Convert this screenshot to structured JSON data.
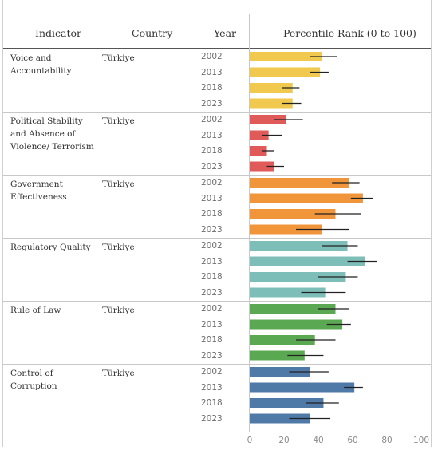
{
  "headers": {
    "indicator": "Indicator",
    "country": "Country",
    "year": "Year",
    "rank": "Percentile Rank (0 to 100)"
  },
  "axis_ticks": [
    "0",
    "20",
    "40",
    "60",
    "80",
    "100"
  ],
  "colors": {
    "Voice and Accountability": "#f0c94e",
    "Political Stability and Absence of Violence/ Terrorism": "#e05a5a",
    "Government Effectiveness": "#f0953a",
    "Regulatory Quality": "#7dbfb8",
    "Rule of Law": "#5aa851",
    "Control of Corruption": "#4f7aa8"
  },
  "chart_data": {
    "type": "bar",
    "orientation": "horizontal",
    "title": "",
    "xlabel": "Percentile Rank (0 to 100)",
    "xlim": [
      0,
      100
    ],
    "error_bars": true,
    "groups": [
      {
        "indicator": "Voice and Accountability",
        "country": "Türkiye",
        "rows": [
          {
            "year": "2002",
            "value": 42,
            "low": 35,
            "high": 51
          },
          {
            "year": "2013",
            "value": 41,
            "low": 35,
            "high": 46
          },
          {
            "year": "2018",
            "value": 25,
            "low": 19,
            "high": 29
          },
          {
            "year": "2023",
            "value": 25,
            "low": 19,
            "high": 30
          }
        ]
      },
      {
        "indicator": "Political Stability and Absence of Violence/ Terrorism",
        "country": "Türkiye",
        "rows": [
          {
            "year": "2002",
            "value": 21,
            "low": 14,
            "high": 31
          },
          {
            "year": "2013",
            "value": 11,
            "low": 7,
            "high": 19
          },
          {
            "year": "2018",
            "value": 10,
            "low": 7,
            "high": 14
          },
          {
            "year": "2023",
            "value": 14,
            "low": 10,
            "high": 20
          }
        ]
      },
      {
        "indicator": "Government Effectiveness",
        "country": "Türkiye",
        "rows": [
          {
            "year": "2002",
            "value": 58,
            "low": 48,
            "high": 64
          },
          {
            "year": "2013",
            "value": 66,
            "low": 59,
            "high": 72
          },
          {
            "year": "2018",
            "value": 50,
            "low": 38,
            "high": 65
          },
          {
            "year": "2023",
            "value": 42,
            "low": 27,
            "high": 58
          }
        ]
      },
      {
        "indicator": "Regulatory Quality",
        "country": "Türkiye",
        "rows": [
          {
            "year": "2002",
            "value": 57,
            "low": 42,
            "high": 63
          },
          {
            "year": "2013",
            "value": 67,
            "low": 57,
            "high": 74
          },
          {
            "year": "2018",
            "value": 56,
            "low": 40,
            "high": 63
          },
          {
            "year": "2023",
            "value": 44,
            "low": 30,
            "high": 56
          }
        ]
      },
      {
        "indicator": "Rule of Law",
        "country": "Türkiye",
        "rows": [
          {
            "year": "2002",
            "value": 50,
            "low": 40,
            "high": 58
          },
          {
            "year": "2013",
            "value": 54,
            "low": 45,
            "high": 59
          },
          {
            "year": "2018",
            "value": 38,
            "low": 27,
            "high": 50
          },
          {
            "year": "2023",
            "value": 32,
            "low": 22,
            "high": 43
          }
        ]
      },
      {
        "indicator": "Control of Corruption",
        "country": "Türkiye",
        "rows": [
          {
            "year": "2002",
            "value": 35,
            "low": 23,
            "high": 46
          },
          {
            "year": "2013",
            "value": 61,
            "low": 55,
            "high": 66
          },
          {
            "year": "2018",
            "value": 43,
            "low": 33,
            "high": 52
          },
          {
            "year": "2023",
            "value": 35,
            "low": 23,
            "high": 47
          }
        ]
      }
    ]
  }
}
